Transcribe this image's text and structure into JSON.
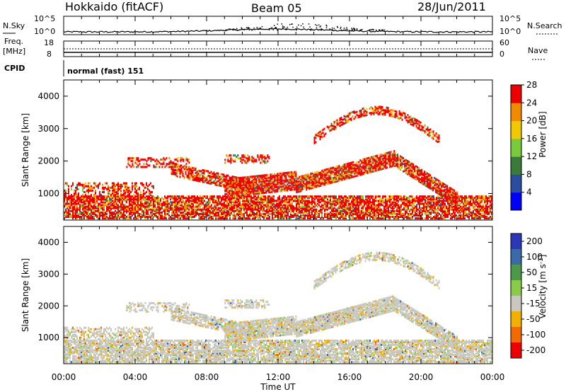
{
  "header": {
    "radar": "Hokkaido (fitACF)",
    "beam": "Beam 05",
    "date": "28/Jun/2011"
  },
  "top_panels": {
    "nsky_label": "N.Sky",
    "nsky_ticks": [
      "10^5",
      "10^0"
    ],
    "nsearch_label": "N.Search",
    "nsearch_ticks": [
      "10^5",
      "10^0"
    ],
    "freq_label_line1": "Freq.",
    "freq_label_line2": "[MHz]",
    "freq_ticks": [
      "18",
      "8"
    ],
    "nave_label": "Nave",
    "nave_ticks": [
      "60",
      "0"
    ],
    "cpid_label": "CPID",
    "cpid_value": "normal (fast) 151"
  },
  "chart_data": [
    {
      "type": "heatmap",
      "name": "power",
      "ylabel": "Slant Range [km]",
      "xlabel": "",
      "ylim": [
        180,
        4500
      ],
      "yticks": [
        "1000",
        "2000",
        "3000",
        "4000"
      ],
      "colorbar_label": "Power [dB]",
      "colorbar_ticks": [
        "4",
        "8",
        "12",
        "16",
        "20",
        "24",
        "28"
      ],
      "colorbar_colors": [
        "#0000ff",
        "#2a4da0",
        "#3a7a3a",
        "#7acb3a",
        "#f2c800",
        "#f28a00",
        "#ee0000"
      ]
    },
    {
      "type": "heatmap",
      "name": "velocity",
      "ylabel": "Slant Range [km]",
      "xlabel": "Time UT",
      "ylim": [
        180,
        4500
      ],
      "yticks": [
        "1000",
        "2000",
        "3000",
        "4000"
      ],
      "xticks": [
        "00:00",
        "04:00",
        "08:00",
        "12:00",
        "16:00",
        "20:00",
        "00:00"
      ],
      "colorbar_label": "Velocity [m s",
      "colorbar_unit_sup": "-1",
      "colorbar_ticks": [
        "200",
        "100",
        "50",
        "15",
        "-15",
        "-50",
        "-100",
        "-200"
      ],
      "colorbar_colors": [
        "#2a38b8",
        "#3a6aa8",
        "#4a9a4a",
        "#8acb4a",
        "#c8c8c0",
        "#f2b000",
        "#f26a00",
        "#ee0000"
      ]
    }
  ]
}
